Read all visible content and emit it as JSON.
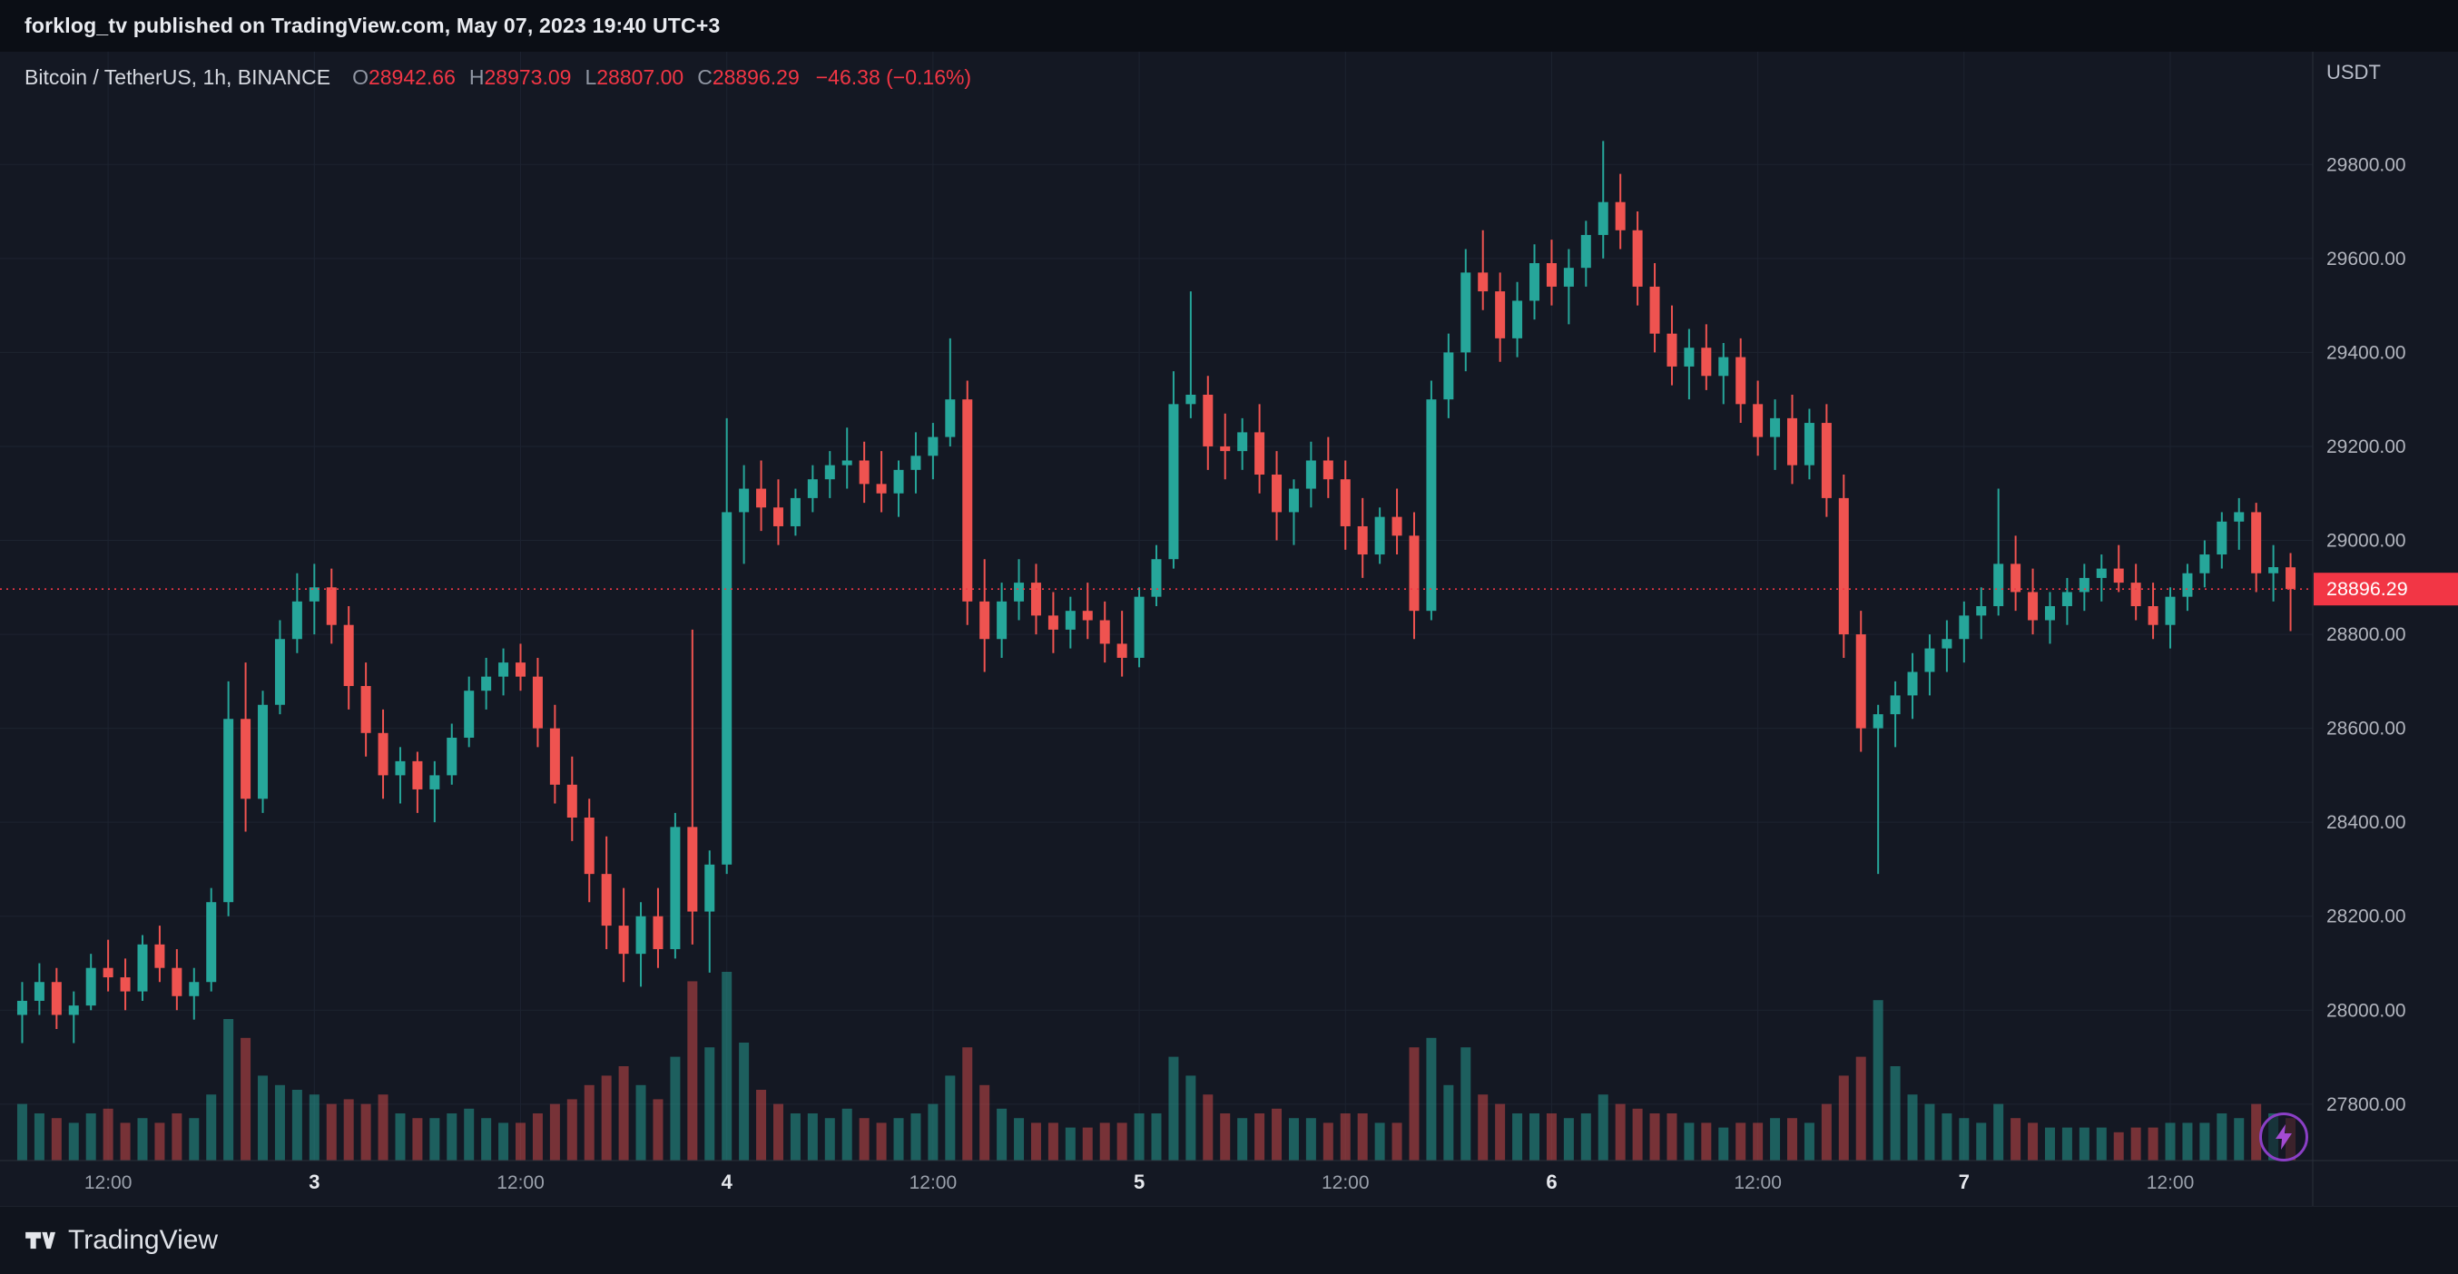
{
  "header": {
    "text": "forklog_tv published on TradingView.com, May 07, 2023 19:40 UTC+3"
  },
  "legend": {
    "symbol_title": "Bitcoin / TetherUS, 1h, BINANCE",
    "ohlc": {
      "o_label": "O",
      "o_value": "28942.66",
      "h_label": "H",
      "h_value": "28973.09",
      "l_label": "L",
      "l_value": "28807.00",
      "c_label": "C",
      "c_value": "28896.29"
    },
    "change_text": "−46.38 (−0.16%)"
  },
  "price_axis": {
    "currency": "USDT",
    "ticks": [
      29800,
      29600,
      29400,
      29200,
      29000,
      28800,
      28600,
      28400,
      28200,
      28000,
      27800
    ],
    "last_price_label": "28896.29"
  },
  "time_axis": {
    "ticks": [
      {
        "label": "12:00",
        "index": 5,
        "type": "hour"
      },
      {
        "label": "3",
        "index": 17,
        "type": "day"
      },
      {
        "label": "12:00",
        "index": 29,
        "type": "hour"
      },
      {
        "label": "4",
        "index": 41,
        "type": "day"
      },
      {
        "label": "12:00",
        "index": 53,
        "type": "hour"
      },
      {
        "label": "5",
        "index": 65,
        "type": "day"
      },
      {
        "label": "12:00",
        "index": 77,
        "type": "hour"
      },
      {
        "label": "6",
        "index": 89,
        "type": "day"
      },
      {
        "label": "12:00",
        "index": 101,
        "type": "hour"
      },
      {
        "label": "7",
        "index": 113,
        "type": "day"
      },
      {
        "label": "12:00",
        "index": 125,
        "type": "hour"
      }
    ]
  },
  "footer": {
    "brand": "TradingView"
  },
  "colors": {
    "background": "#141823",
    "topbar_bg": "#0b0e15",
    "grid": "#1d2330",
    "axis_border": "#2a2f3a",
    "up": "#26a69a",
    "down": "#ef5350",
    "vol_up": "rgba(38,166,154,0.5)",
    "vol_down": "rgba(239,83,80,0.45)",
    "accent_red": "#f23645",
    "flash_purple": "#a44bd3"
  },
  "chart_data": {
    "type": "candlestick",
    "title": "Bitcoin / TetherUS, 1h, BINANCE",
    "symbol": "Bitcoin / TetherUS",
    "interval": "1h",
    "exchange": "BINANCE",
    "ylabel": "USDT",
    "ylim": [
      27680,
      30040
    ],
    "grid": true,
    "price_gridlines": [
      27800,
      28000,
      28200,
      28400,
      28600,
      28800,
      29000,
      29200,
      29400,
      29600,
      29800
    ],
    "last_price": 28896.29,
    "last_change": "−46.38 (−0.16%)",
    "last_candle": {
      "open": 28942.66,
      "high": 28973.09,
      "low": 28807.0,
      "close": 28896.29
    },
    "columns": [
      "open",
      "high",
      "low",
      "close",
      "volume_rel"
    ],
    "candles": [
      [
        27990,
        28060,
        27930,
        28020,
        12
      ],
      [
        28020,
        28100,
        27990,
        28060,
        10
      ],
      [
        28060,
        28090,
        27960,
        27990,
        9
      ],
      [
        27990,
        28040,
        27930,
        28010,
        8
      ],
      [
        28010,
        28120,
        28000,
        28090,
        10
      ],
      [
        28090,
        28150,
        28040,
        28070,
        11
      ],
      [
        28070,
        28110,
        28000,
        28040,
        8
      ],
      [
        28040,
        28160,
        28020,
        28140,
        9
      ],
      [
        28140,
        28180,
        28060,
        28090,
        8
      ],
      [
        28090,
        28130,
        28000,
        28030,
        10
      ],
      [
        28030,
        28090,
        27980,
        28060,
        9
      ],
      [
        28060,
        28260,
        28040,
        28230,
        14
      ],
      [
        28230,
        28700,
        28200,
        28620,
        30
      ],
      [
        28620,
        28740,
        28380,
        28450,
        26
      ],
      [
        28450,
        28680,
        28420,
        28650,
        18
      ],
      [
        28650,
        28830,
        28630,
        28790,
        16
      ],
      [
        28790,
        28930,
        28760,
        28870,
        15
      ],
      [
        28870,
        28950,
        28800,
        28900,
        14
      ],
      [
        28900,
        28940,
        28780,
        28820,
        12
      ],
      [
        28820,
        28860,
        28640,
        28690,
        13
      ],
      [
        28690,
        28740,
        28540,
        28590,
        12
      ],
      [
        28590,
        28640,
        28450,
        28500,
        14
      ],
      [
        28500,
        28560,
        28440,
        28530,
        10
      ],
      [
        28530,
        28550,
        28420,
        28470,
        9
      ],
      [
        28470,
        28530,
        28400,
        28500,
        9
      ],
      [
        28500,
        28610,
        28480,
        28580,
        10
      ],
      [
        28580,
        28710,
        28560,
        28680,
        11
      ],
      [
        28680,
        28750,
        28640,
        28710,
        9
      ],
      [
        28710,
        28770,
        28670,
        28740,
        8
      ],
      [
        28740,
        28780,
        28680,
        28710,
        8
      ],
      [
        28710,
        28750,
        28560,
        28600,
        10
      ],
      [
        28600,
        28650,
        28440,
        28480,
        12
      ],
      [
        28480,
        28540,
        28360,
        28410,
        13
      ],
      [
        28410,
        28450,
        28230,
        28290,
        16
      ],
      [
        28290,
        28370,
        28130,
        28180,
        18
      ],
      [
        28180,
        28260,
        28060,
        28120,
        20
      ],
      [
        28120,
        28230,
        28050,
        28200,
        16
      ],
      [
        28200,
        28260,
        28090,
        28130,
        13
      ],
      [
        28130,
        28420,
        28110,
        28390,
        22
      ],
      [
        28390,
        28810,
        28140,
        28210,
        38
      ],
      [
        28210,
        28340,
        28080,
        28310,
        24
      ],
      [
        28310,
        29260,
        28290,
        29060,
        40
      ],
      [
        29060,
        29160,
        28950,
        29110,
        25
      ],
      [
        29110,
        29170,
        29020,
        29070,
        15
      ],
      [
        29070,
        29130,
        28990,
        29030,
        12
      ],
      [
        29030,
        29110,
        29010,
        29090,
        10
      ],
      [
        29090,
        29160,
        29060,
        29130,
        10
      ],
      [
        29130,
        29190,
        29090,
        29160,
        9
      ],
      [
        29160,
        29240,
        29110,
        29170,
        11
      ],
      [
        29170,
        29210,
        29080,
        29120,
        9
      ],
      [
        29120,
        29190,
        29060,
        29100,
        8
      ],
      [
        29100,
        29170,
        29050,
        29150,
        9
      ],
      [
        29150,
        29230,
        29100,
        29180,
        10
      ],
      [
        29180,
        29250,
        29130,
        29220,
        12
      ],
      [
        29220,
        29430,
        29200,
        29300,
        18
      ],
      [
        29300,
        29340,
        28820,
        28870,
        24
      ],
      [
        28870,
        28960,
        28720,
        28790,
        16
      ],
      [
        28790,
        28910,
        28750,
        28870,
        11
      ],
      [
        28870,
        28960,
        28830,
        28910,
        9
      ],
      [
        28910,
        28950,
        28800,
        28840,
        8
      ],
      [
        28840,
        28890,
        28760,
        28810,
        8
      ],
      [
        28810,
        28880,
        28770,
        28850,
        7
      ],
      [
        28850,
        28910,
        28790,
        28830,
        7
      ],
      [
        28830,
        28870,
        28740,
        28780,
        8
      ],
      [
        28780,
        28850,
        28710,
        28750,
        8
      ],
      [
        28750,
        28900,
        28730,
        28880,
        10
      ],
      [
        28880,
        28990,
        28860,
        28960,
        10
      ],
      [
        28960,
        29360,
        28940,
        29290,
        22
      ],
      [
        29290,
        29530,
        29260,
        29310,
        18
      ],
      [
        29310,
        29350,
        29150,
        29200,
        14
      ],
      [
        29200,
        29270,
        29130,
        29190,
        10
      ],
      [
        29190,
        29260,
        29150,
        29230,
        9
      ],
      [
        29230,
        29290,
        29100,
        29140,
        10
      ],
      [
        29140,
        29190,
        29000,
        29060,
        11
      ],
      [
        29060,
        29130,
        28990,
        29110,
        9
      ],
      [
        29110,
        29210,
        29070,
        29170,
        9
      ],
      [
        29170,
        29220,
        29090,
        29130,
        8
      ],
      [
        29130,
        29170,
        28980,
        29030,
        10
      ],
      [
        29030,
        29090,
        28920,
        28970,
        10
      ],
      [
        28970,
        29070,
        28950,
        29050,
        8
      ],
      [
        29050,
        29110,
        28970,
        29010,
        8
      ],
      [
        29010,
        29060,
        28790,
        28850,
        24
      ],
      [
        28850,
        29340,
        28830,
        29300,
        26
      ],
      [
        29300,
        29440,
        29260,
        29400,
        16
      ],
      [
        29400,
        29620,
        29360,
        29570,
        24
      ],
      [
        29570,
        29660,
        29490,
        29530,
        14
      ],
      [
        29530,
        29570,
        29380,
        29430,
        12
      ],
      [
        29430,
        29550,
        29390,
        29510,
        10
      ],
      [
        29510,
        29630,
        29470,
        29590,
        10
      ],
      [
        29590,
        29640,
        29500,
        29540,
        10
      ],
      [
        29540,
        29620,
        29460,
        29580,
        9
      ],
      [
        29580,
        29680,
        29540,
        29650,
        10
      ],
      [
        29650,
        29850,
        29600,
        29720,
        14
      ],
      [
        29720,
        29780,
        29620,
        29660,
        12
      ],
      [
        29660,
        29700,
        29500,
        29540,
        11
      ],
      [
        29540,
        29590,
        29400,
        29440,
        10
      ],
      [
        29440,
        29500,
        29330,
        29370,
        10
      ],
      [
        29370,
        29450,
        29300,
        29410,
        8
      ],
      [
        29410,
        29460,
        29320,
        29350,
        8
      ],
      [
        29350,
        29420,
        29290,
        29390,
        7
      ],
      [
        29390,
        29430,
        29250,
        29290,
        8
      ],
      [
        29290,
        29340,
        29180,
        29220,
        8
      ],
      [
        29220,
        29300,
        29150,
        29260,
        9
      ],
      [
        29260,
        29310,
        29120,
        29160,
        9
      ],
      [
        29160,
        29280,
        29130,
        29250,
        8
      ],
      [
        29250,
        29290,
        29050,
        29090,
        12
      ],
      [
        29090,
        29140,
        28750,
        28800,
        18
      ],
      [
        28800,
        28850,
        28550,
        28600,
        22
      ],
      [
        28600,
        28650,
        28290,
        28630,
        34
      ],
      [
        28630,
        28700,
        28560,
        28670,
        20
      ],
      [
        28670,
        28760,
        28620,
        28720,
        14
      ],
      [
        28720,
        28800,
        28670,
        28770,
        12
      ],
      [
        28770,
        28830,
        28720,
        28790,
        10
      ],
      [
        28790,
        28870,
        28740,
        28840,
        9
      ],
      [
        28840,
        28900,
        28790,
        28860,
        8
      ],
      [
        28860,
        29110,
        28840,
        28950,
        12
      ],
      [
        28950,
        29010,
        28850,
        28890,
        9
      ],
      [
        28890,
        28940,
        28800,
        28830,
        8
      ],
      [
        28830,
        28890,
        28780,
        28860,
        7
      ],
      [
        28860,
        28920,
        28820,
        28890,
        7
      ],
      [
        28890,
        28950,
        28850,
        28920,
        7
      ],
      [
        28920,
        28970,
        28870,
        28940,
        7
      ],
      [
        28940,
        28990,
        28890,
        28910,
        6
      ],
      [
        28910,
        28950,
        28830,
        28860,
        7
      ],
      [
        28860,
        28910,
        28790,
        28820,
        7
      ],
      [
        28820,
        28900,
        28770,
        28880,
        8
      ],
      [
        28880,
        28950,
        28850,
        28930,
        8
      ],
      [
        28930,
        29000,
        28900,
        28970,
        8
      ],
      [
        28970,
        29060,
        28940,
        29040,
        10
      ],
      [
        29040,
        29090,
        28980,
        29060,
        9
      ],
      [
        29060,
        29080,
        28890,
        28930,
        12
      ],
      [
        28930,
        28990,
        28870,
        28943,
        10
      ],
      [
        28942.66,
        28973.09,
        28807.0,
        28896.29,
        9
      ]
    ]
  }
}
